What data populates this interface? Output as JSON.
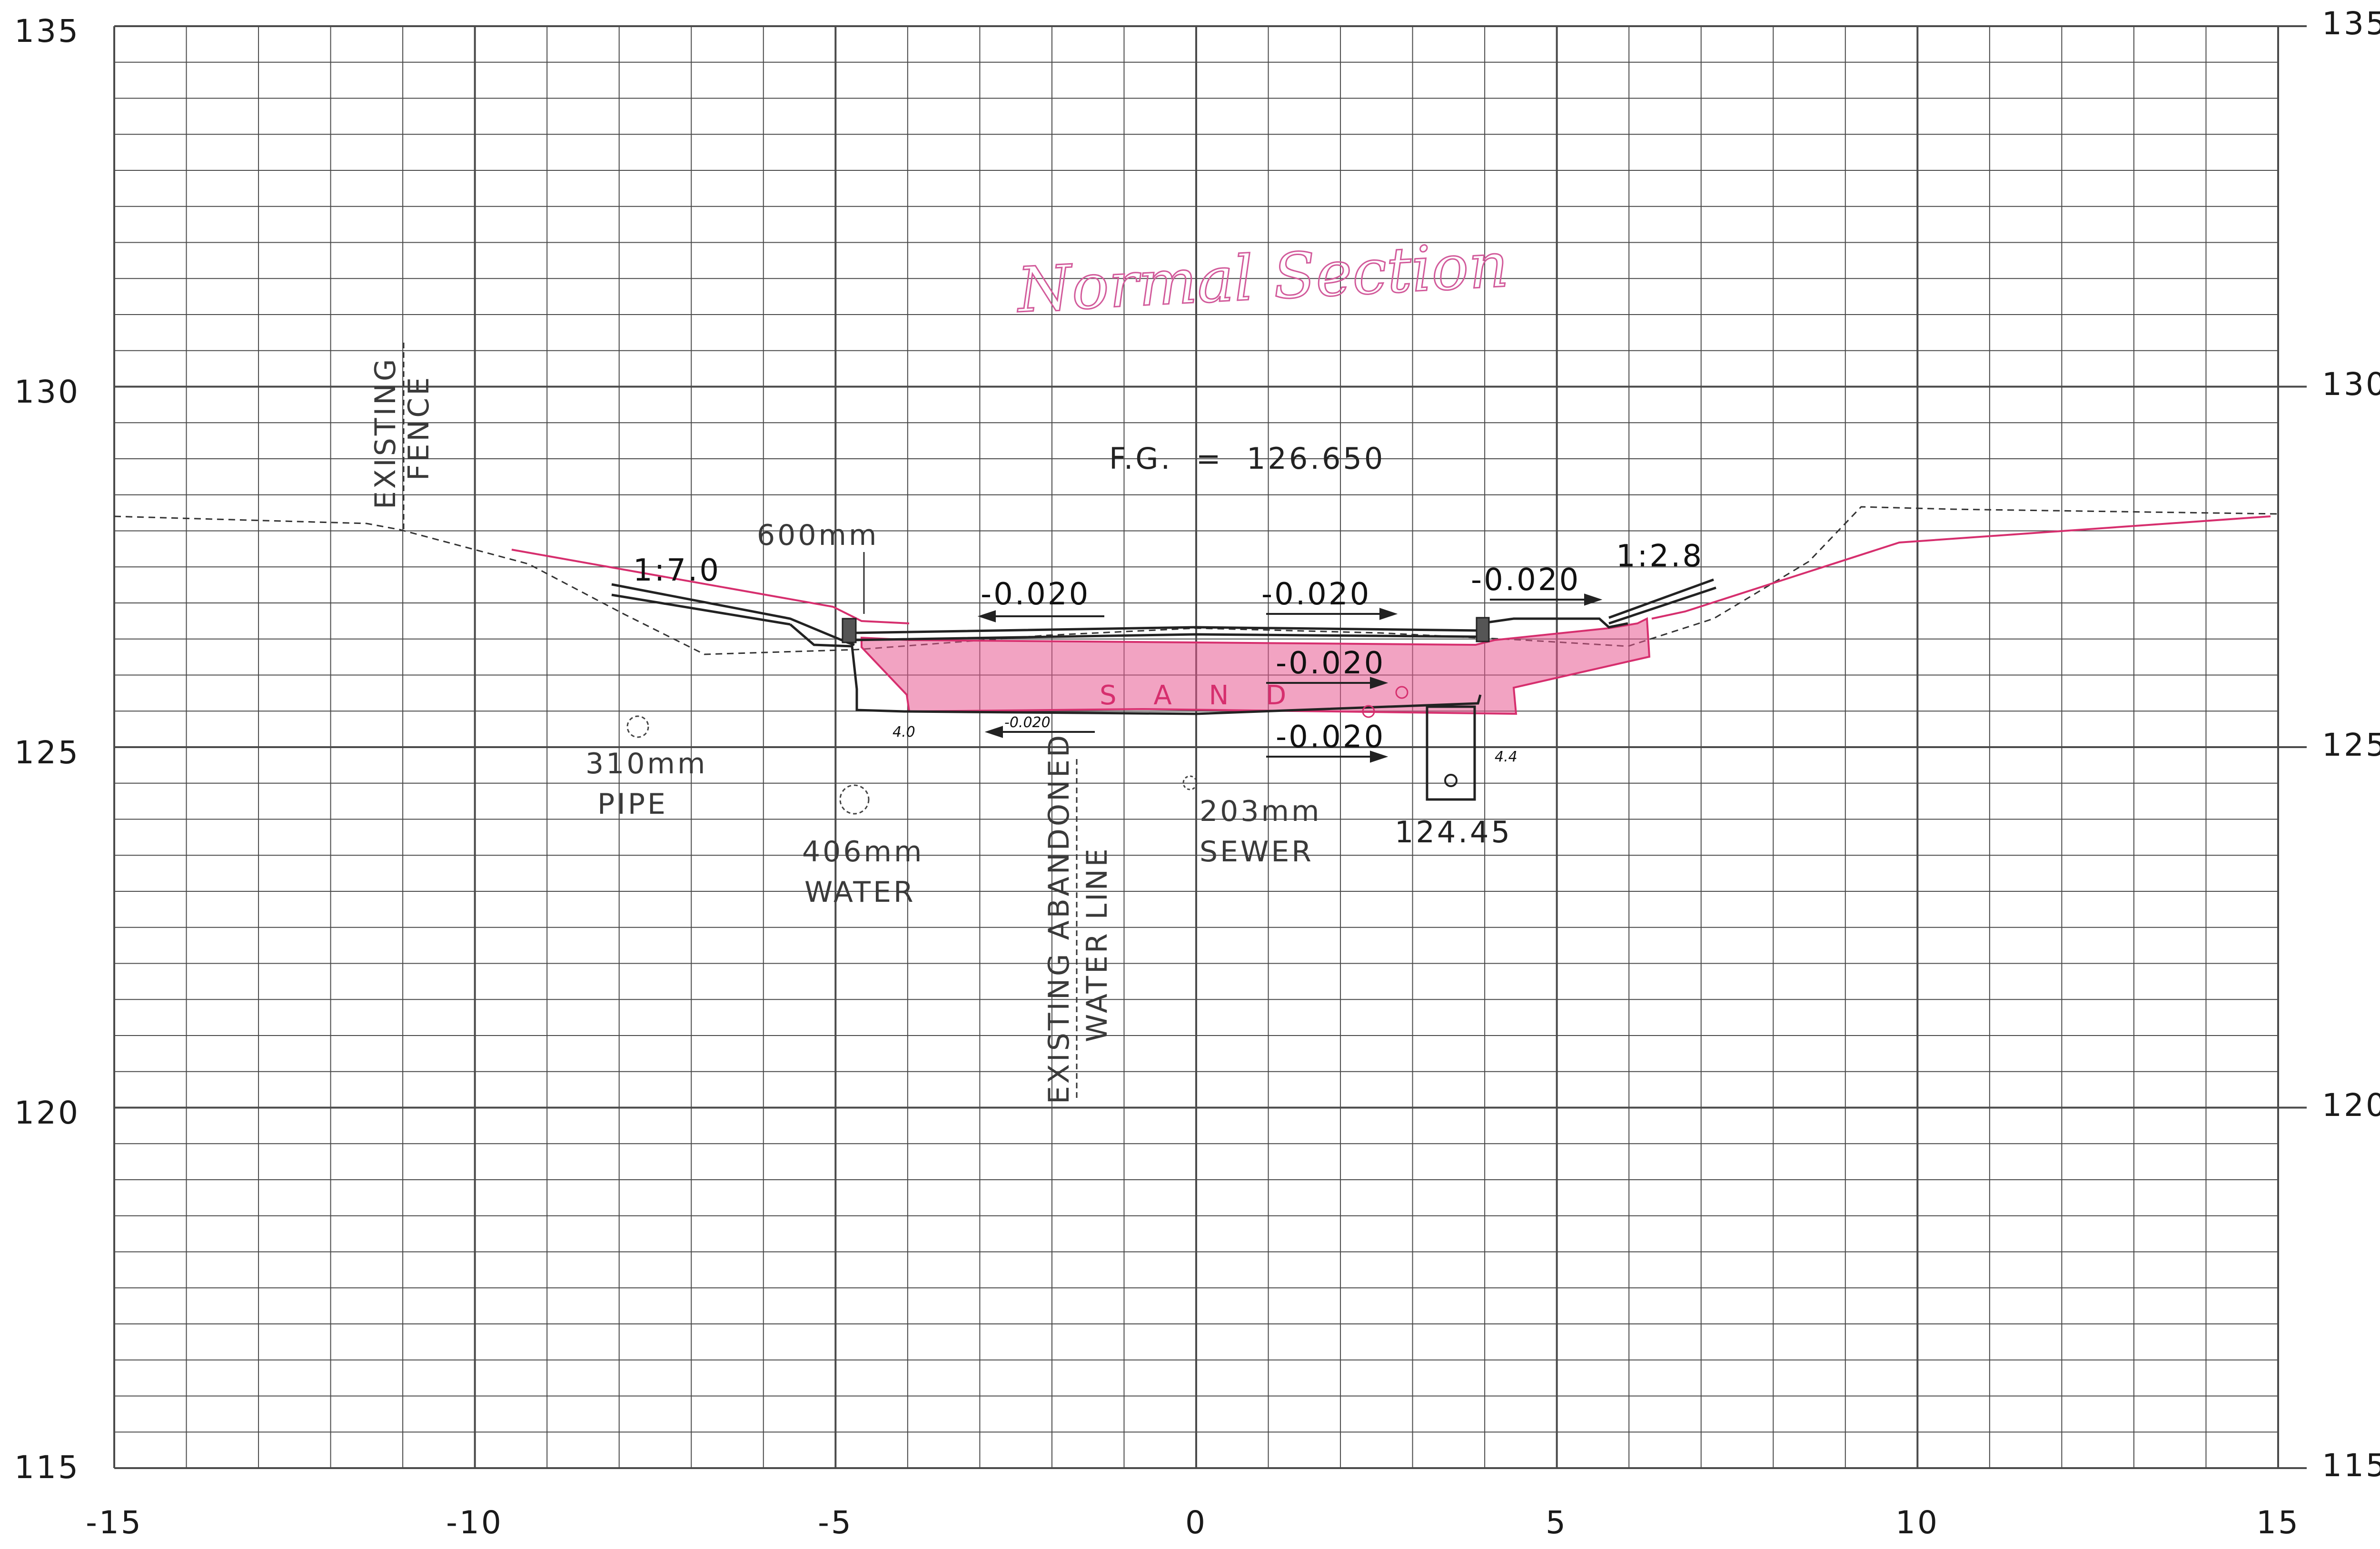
{
  "title": "Normal Section",
  "axes": {
    "x_ticks": [
      "-15",
      "-10",
      "-5",
      "0",
      "5",
      "10",
      "15"
    ],
    "y_ticks_left": [
      "135",
      "130",
      "125",
      "120",
      "115"
    ],
    "y_ticks_right": [
      "135",
      "130",
      "125",
      "120",
      "115"
    ],
    "x_range": [
      -15,
      15
    ],
    "y_range": [
      115,
      135
    ],
    "grid": "1 m horizontal, 1 m vertical"
  },
  "labels": {
    "existing_fence": [
      "EXISTING",
      "FENCE"
    ],
    "finished_grade": "F.G.  =  126.650",
    "left_slope": "1:7.0",
    "right_slope": "1:2.8",
    "curb_width": "600mm",
    "crossfall_left": "-0.020",
    "crossfall_center": "-0.020",
    "crossfall_right": "-0.020",
    "subbase_slope_1": "-0.020",
    "subbase_slope_2": "-0.020",
    "subgrade_slope": "-0.020",
    "sand_layer": "S A N D",
    "pipe_310": [
      "310mm",
      "PIPE"
    ],
    "water_406": [
      "406mm",
      "WATER"
    ],
    "abandoned_water": [
      "EXISTING ABANDONED",
      "WATER LINE"
    ],
    "sewer_203": [
      "203mm",
      "SEWER"
    ],
    "invert_elevation": "124.45",
    "left_depth_mark": "4.0",
    "right_depth_mark": "4.4"
  },
  "colors": {
    "grid": "#4a4a4a",
    "linework": "#222222",
    "markup": "#d62f6e",
    "markup_fill": "#e8588f",
    "handwriting": "#d25b9b"
  }
}
